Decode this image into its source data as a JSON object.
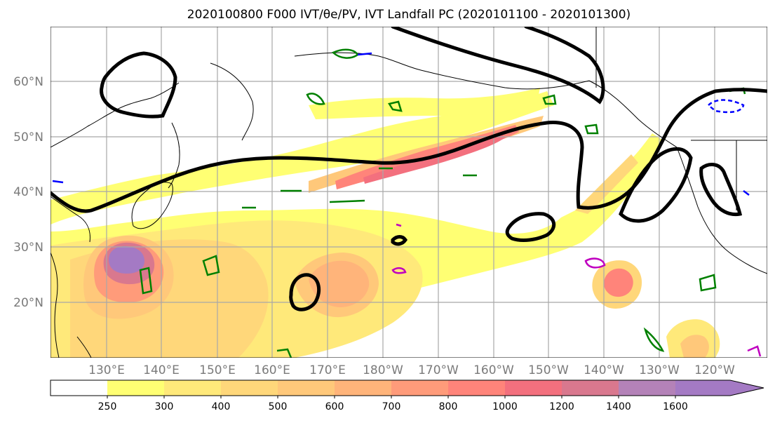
{
  "title": "2020100800 F000 IVT/θe/PV, IVT Landfall PC (2020101100 - 2020101300)",
  "map": {
    "lon_labels": [
      "130°E",
      "140°E",
      "150°E",
      "160°E",
      "170°E",
      "180°W",
      "170°W",
      "160°W",
      "150°W",
      "140°W",
      "130°W",
      "120°W"
    ],
    "lat_labels": [
      "60°N",
      "50°N",
      "40°N",
      "30°N",
      "20°N"
    ],
    "label_color": "#7a7a7a"
  },
  "colorbar": {
    "levels": [
      "250",
      "300",
      "400",
      "500",
      "600",
      "700",
      "800",
      "1000",
      "1200",
      "1400",
      "1600"
    ],
    "colors": [
      "#ffffff",
      "#ffff73",
      "#ffe97a",
      "#ffd77a",
      "#ffc87a",
      "#ffb47a",
      "#ff9b7a",
      "#ff847a",
      "#f3707e",
      "#d9788e",
      "#b482b8",
      "#a47ac4"
    ],
    "extend": "max"
  },
  "legend_colors": {
    "ivt_contour": "#000000",
    "theta_e": "#008000",
    "pv_negative": "#0000ff",
    "pv_positive": "#c000c0"
  }
}
